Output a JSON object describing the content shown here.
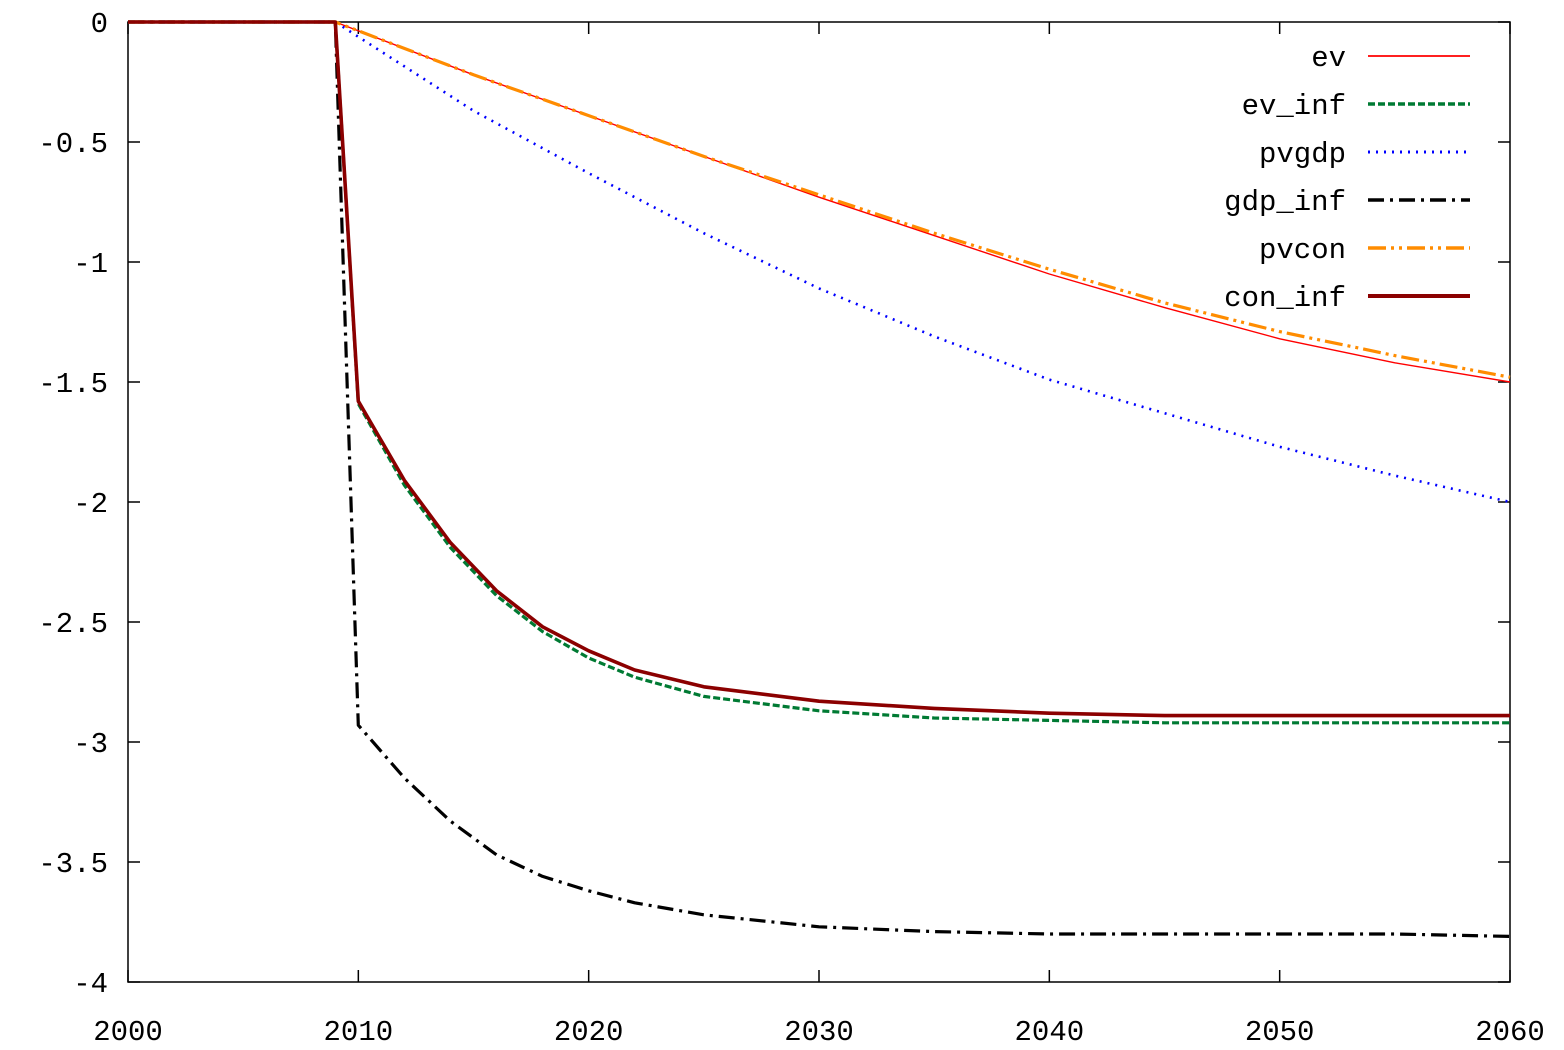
{
  "chart_data": {
    "type": "line",
    "title": "",
    "xlabel": "",
    "ylabel": "",
    "xlim": [
      2000,
      2060
    ],
    "ylim": [
      -4,
      0
    ],
    "xticks": [
      2000,
      2010,
      2020,
      2030,
      2040,
      2050,
      2060
    ],
    "yticks": [
      0,
      -0.5,
      -1,
      -1.5,
      -2,
      -2.5,
      -3,
      -3.5,
      -4
    ],
    "xtick_labels": [
      "2000",
      "2010",
      "2020",
      "2030",
      "2040",
      "2050",
      "2060"
    ],
    "ytick_labels": [
      "0",
      "-0.5",
      "-1",
      "-1.5",
      "-2",
      "-2.5",
      "-3",
      "-3.5",
      "-4"
    ],
    "grid": false,
    "legend_position": "top-right",
    "series": [
      {
        "name": "ev",
        "color": "#ff0000",
        "style": "solid-thin",
        "x": [
          2000,
          2009,
          2015,
          2020,
          2025,
          2030,
          2035,
          2040,
          2045,
          2050,
          2055,
          2060
        ],
        "y": [
          0,
          0,
          -0.22,
          -0.39,
          -0.56,
          -0.73,
          -0.89,
          -1.05,
          -1.19,
          -1.32,
          -1.42,
          -1.5
        ]
      },
      {
        "name": "ev_inf",
        "color": "#007a33",
        "style": "dashed",
        "x": [
          2000,
          2009,
          2010,
          2012,
          2014,
          2016,
          2018,
          2020,
          2022,
          2025,
          2030,
          2035,
          2040,
          2045,
          2050,
          2055,
          2060
        ],
        "y": [
          0,
          0,
          -1.59,
          -1.93,
          -2.19,
          -2.39,
          -2.54,
          -2.65,
          -2.73,
          -2.81,
          -2.87,
          -2.9,
          -2.91,
          -2.92,
          -2.92,
          -2.92,
          -2.92
        ]
      },
      {
        "name": "pvgdp",
        "color": "#0000ff",
        "style": "dotted",
        "x": [
          2000,
          2009,
          2015,
          2020,
          2025,
          2030,
          2035,
          2040,
          2045,
          2050,
          2055,
          2060
        ],
        "y": [
          0,
          0,
          -0.37,
          -0.63,
          -0.88,
          -1.11,
          -1.31,
          -1.49,
          -1.63,
          -1.77,
          -1.89,
          -2.0
        ]
      },
      {
        "name": "gdp_inf",
        "color": "#000000",
        "style": "dash-dot",
        "x": [
          2000,
          2009,
          2010,
          2012,
          2014,
          2016,
          2018,
          2020,
          2022,
          2025,
          2030,
          2035,
          2040,
          2045,
          2050,
          2055,
          2060
        ],
        "y": [
          0,
          0,
          -2.93,
          -3.15,
          -3.33,
          -3.47,
          -3.56,
          -3.62,
          -3.67,
          -3.72,
          -3.77,
          -3.79,
          -3.8,
          -3.8,
          -3.8,
          -3.8,
          -3.81
        ]
      },
      {
        "name": "pvcon",
        "color": "#ff8c00",
        "style": "dash-dot-dot",
        "x": [
          2000,
          2009,
          2015,
          2020,
          2025,
          2030,
          2035,
          2040,
          2045,
          2050,
          2055,
          2060
        ],
        "y": [
          0,
          0,
          -0.22,
          -0.39,
          -0.56,
          -0.72,
          -0.88,
          -1.03,
          -1.17,
          -1.29,
          -1.39,
          -1.48
        ]
      },
      {
        "name": "con_inf",
        "color": "#8b0000",
        "style": "solid-thick",
        "x": [
          2000,
          2009,
          2010,
          2012,
          2014,
          2016,
          2018,
          2020,
          2022,
          2025,
          2030,
          2035,
          2040,
          2045,
          2050,
          2055,
          2060
        ],
        "y": [
          0,
          0,
          -1.58,
          -1.91,
          -2.17,
          -2.37,
          -2.52,
          -2.62,
          -2.7,
          -2.77,
          -2.83,
          -2.86,
          -2.88,
          -2.89,
          -2.89,
          -2.89,
          -2.89
        ]
      }
    ]
  }
}
